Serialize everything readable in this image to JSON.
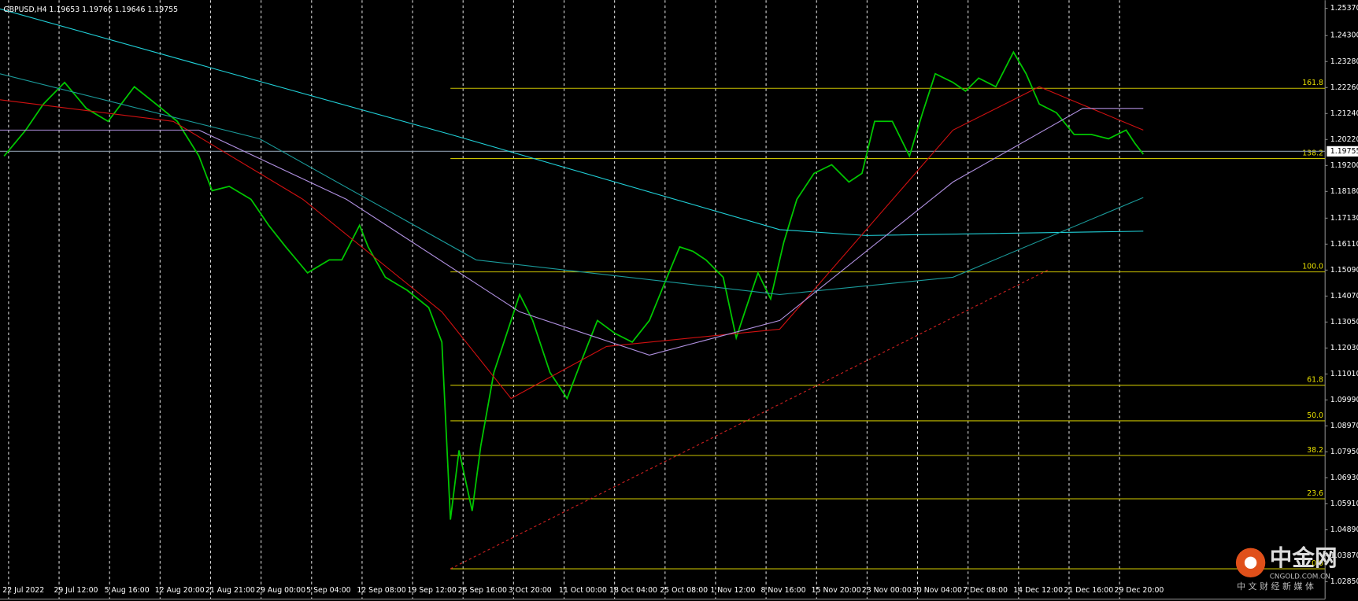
{
  "chart_data": {
    "type": "line",
    "title": "GBPUSD,H4  1.19653 1.19766 1.19646 1.19755",
    "categories": [
      "22 Jul 2022",
      "29 Jul 12:00",
      "5 Aug 16:00",
      "12 Aug 20:00",
      "21 Aug 21:00",
      "29 Aug 00:00",
      "5 Sep 04:00",
      "12 Sep 08:00",
      "19 Sep 12:00",
      "26 Sep 16:00",
      "3 Oct 20:00",
      "11 Oct 00:00",
      "18 Oct 04:00",
      "25 Oct 08:00",
      "1 Nov 12:00",
      "8 Nov 16:00",
      "15 Nov 20:00",
      "23 Nov 00:00",
      "30 Nov 04:00",
      "7 Dec 08:00",
      "14 Dec 12:00",
      "21 Dec 16:00",
      "29 Dec 20:00"
    ],
    "xlim": [
      -0.17,
      26.07
    ],
    "ylim": [
      1.0217,
      1.2569
    ],
    "yticks": [
      {
        "value": 1.2537,
        "label": "1.25370"
      },
      {
        "value": 1.243,
        "label": "1.24300"
      },
      {
        "value": 1.2328,
        "label": "1.23280"
      },
      {
        "value": 1.2226,
        "label": "1.22260"
      },
      {
        "value": 1.2124,
        "label": "1.21240"
      },
      {
        "value": 1.2022,
        "label": "1.20220"
      },
      {
        "value": 1.192,
        "label": "1.19200"
      },
      {
        "value": 1.1818,
        "label": "1.18180"
      },
      {
        "value": 1.1713,
        "label": "1.17130"
      },
      {
        "value": 1.1611,
        "label": "1.16110"
      },
      {
        "value": 1.1509,
        "label": "1.15090"
      },
      {
        "value": 1.1407,
        "label": "1.14070"
      },
      {
        "value": 1.1305,
        "label": "1.13050"
      },
      {
        "value": 1.1203,
        "label": "1.12030"
      },
      {
        "value": 1.1101,
        "label": "1.11010"
      },
      {
        "value": 1.0999,
        "label": "1.09990"
      },
      {
        "value": 1.0897,
        "label": "1.08970"
      },
      {
        "value": 1.0795,
        "label": "1.07950"
      },
      {
        "value": 1.0693,
        "label": "1.06930"
      },
      {
        "value": 1.0591,
        "label": "1.05910"
      },
      {
        "value": 1.0489,
        "label": "1.04890"
      },
      {
        "value": 1.0387,
        "label": "1.03870"
      },
      {
        "value": 1.0285,
        "label": "1.02850"
      }
    ],
    "grid": true,
    "series": [
      {
        "color": "#00c800",
        "x": [
          -0.09,
          0.34,
          0.69,
          1.11,
          1.54,
          1.97,
          2.49,
          2.92,
          3.34,
          3.77,
          4.03,
          4.37,
          4.8,
          5.15,
          5.49,
          5.92,
          6.35,
          6.6,
          6.95,
          7.12,
          7.46,
          7.89,
          8.32,
          8.58,
          8.75,
          8.92,
          9.18,
          9.35,
          9.61,
          9.95,
          10.12,
          10.38,
          10.72,
          11.06,
          11.32,
          11.66,
          12.01,
          12.35,
          12.69,
          13.04,
          13.29,
          13.55,
          13.81,
          14.15,
          14.41,
          14.58,
          14.84,
          15.09,
          15.35,
          15.61,
          15.95,
          16.3,
          16.64,
          16.9,
          17.15,
          17.5,
          17.84,
          18.1,
          18.35,
          18.7,
          18.95,
          19.21,
          19.55,
          19.9,
          20.15,
          20.41,
          20.75,
          21.1,
          21.44,
          21.78,
          22.13,
          22.3,
          22.47
        ],
        "values": [
          1.1957,
          1.2059,
          1.2161,
          1.2246,
          1.2144,
          1.2093,
          1.2229,
          1.2161,
          1.2093,
          1.1957,
          1.1821,
          1.1838,
          1.1787,
          1.1685,
          1.16,
          1.1498,
          1.1549,
          1.1549,
          1.1685,
          1.16,
          1.1481,
          1.143,
          1.1362,
          1.1226,
          1.0529,
          1.0801,
          1.0563,
          1.0818,
          1.1107,
          1.1311,
          1.1413,
          1.1311,
          1.1107,
          1.1005,
          1.1141,
          1.1311,
          1.126,
          1.1226,
          1.1311,
          1.1481,
          1.16,
          1.1583,
          1.1549,
          1.1481,
          1.1243,
          1.1345,
          1.1498,
          1.1396,
          1.1617,
          1.1787,
          1.1889,
          1.1923,
          1.1855,
          1.1889,
          1.2093,
          1.2093,
          1.1957,
          1.2127,
          1.228,
          1.2246,
          1.2212,
          1.2263,
          1.2229,
          1.2365,
          1.228,
          1.2161,
          1.2127,
          1.2042,
          1.2042,
          1.2025,
          1.2059,
          1.2008,
          1.1964
        ]
      },
      {
        "color": "#20d0d8",
        "x": [
          -0.17,
          4.12,
          8.75,
          15.27,
          16.98,
          22.47
        ],
        "values": [
          1.2535,
          1.2297,
          1.2042,
          1.1668,
          1.1645,
          1.1662
        ]
      },
      {
        "color": "#1a9a9a",
        "x": [
          -0.17,
          4.97,
          9.26,
          15.27,
          18.7,
          22.47
        ],
        "values": [
          1.228,
          1.2025,
          1.1549,
          1.1413,
          1.1481,
          1.1794
        ]
      },
      {
        "color": "#d01010",
        "x": [
          -0.17,
          3.26,
          5.83,
          8.58,
          9.95,
          11.84,
          15.27,
          18.7,
          20.41,
          22.47
        ],
        "values": [
          1.2178,
          1.2093,
          1.1787,
          1.1345,
          1.1005,
          1.1209,
          1.1277,
          1.2059,
          1.2229,
          1.2059
        ]
      },
      {
        "color": "#b090e0",
        "x": [
          -0.17,
          3.77,
          6.69,
          10.12,
          12.69,
          15.27,
          18.7,
          21.27,
          22.47
        ],
        "values": [
          1.2059,
          1.2059,
          1.1787,
          1.1345,
          1.1175,
          1.1311,
          1.1855,
          1.2144,
          1.2144
        ]
      }
    ],
    "fib_start": 8.75,
    "fib_color": "#c8c000",
    "fib_levels": [
      {
        "value": 1.2223,
        "label": "161.8"
      },
      {
        "value": 1.1947,
        "label": "138.2"
      },
      {
        "value": 1.1502,
        "label": "100.0"
      },
      {
        "value": 1.1057,
        "label": "61.8"
      },
      {
        "value": 1.0917,
        "label": "50.0"
      },
      {
        "value": 1.0781,
        "label": "38.2"
      },
      {
        "value": 1.0611,
        "label": "23.6"
      },
      {
        "value": 1.0336,
        "label": "0.0"
      }
    ],
    "trendline": {
      "color": "#d02020",
      "x": [
        8.75,
        20.58
      ],
      "values": [
        1.0336,
        1.1509
      ]
    },
    "current_price": {
      "value": 1.19755,
      "label": "1.19755"
    }
  },
  "watermark": {
    "name": "中金网",
    "domain": "CNGOLD.COM.CN",
    "slogan": "中 文 财 经 新 媒 体"
  }
}
